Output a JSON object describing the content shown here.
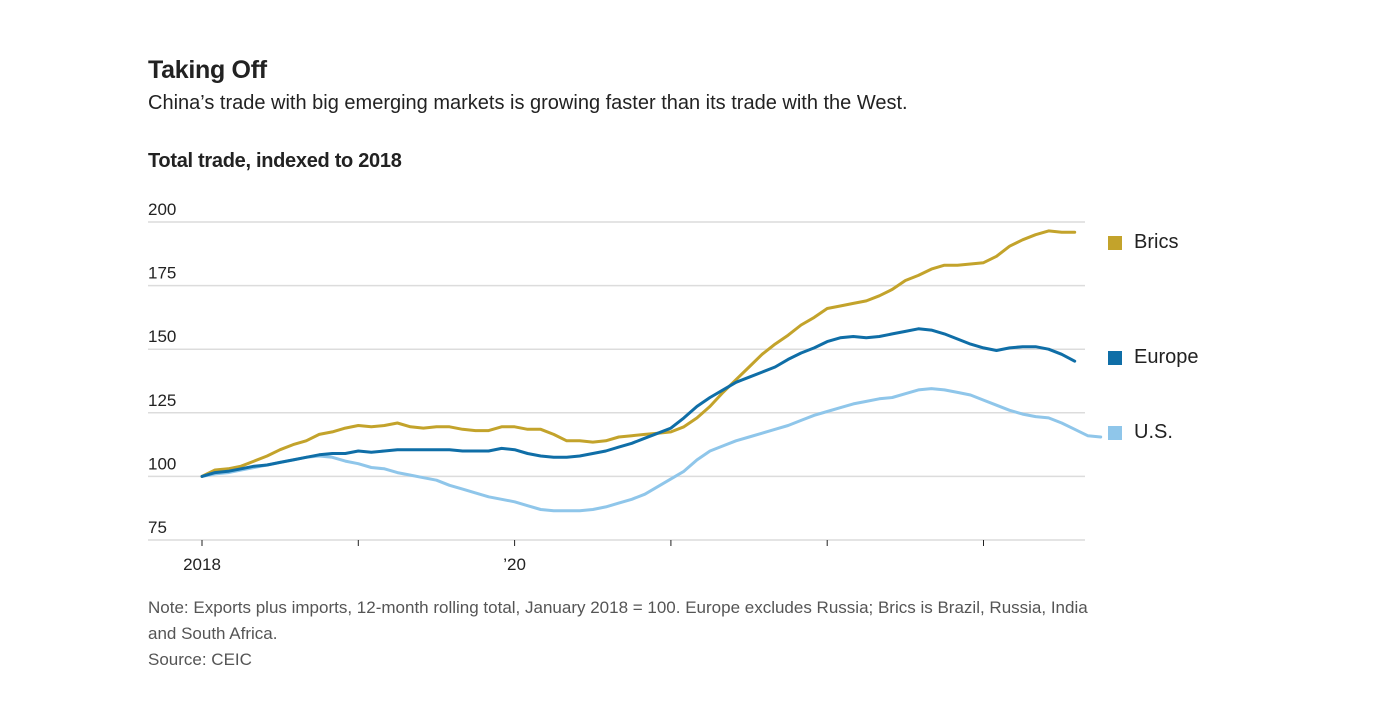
{
  "header": {
    "title": "Taking Off",
    "subtitle": "China’s trade with big emerging markets is growing faster than its trade with the West.",
    "unit_label": "Total trade, indexed to 2018"
  },
  "footer": {
    "note": "Note: Exports plus imports, 12-month rolling total, January 2018 = 100. Europe excludes Russia; Brics is Brazil, Russia, India",
    "note_cont": "and South Africa.",
    "source": "Source: CEIC"
  },
  "chart_data": {
    "type": "line",
    "title": "Taking Off",
    "subtitle": "China’s trade with big emerging markets is growing faster than its trade with the West.",
    "ylabel": "Total trade, indexed to 2018",
    "xlabel": "",
    "ylim": [
      75,
      200
    ],
    "yticks": [
      75,
      100,
      125,
      150,
      175,
      200
    ],
    "ytick_labels": [
      "75",
      "100",
      "125",
      "150",
      "175",
      "200"
    ],
    "xlim_years": [
      2018.0,
      2023.75
    ],
    "xticks": [
      2018,
      2019,
      2020,
      2021,
      2022,
      2023
    ],
    "xtick_labels": [
      "2018",
      "",
      "’20",
      "",
      "",
      ""
    ],
    "x_start": "2018-01",
    "x_step": "month",
    "grid": true,
    "legend_position": "right",
    "series": [
      {
        "name": "Brics",
        "color": "#c3a32b",
        "values": [
          100,
          102.5,
          103,
          104,
          106,
          108,
          110.5,
          112.5,
          114,
          116.5,
          117.5,
          119,
          120,
          119.5,
          120,
          121,
          119.5,
          119,
          119.5,
          119.5,
          118.5,
          118,
          118,
          119.5,
          119.5,
          118.5,
          118.5,
          116.5,
          114,
          114,
          113.5,
          114,
          115.5,
          116,
          116.5,
          117,
          117.5,
          119.5,
          123,
          127.5,
          133,
          138,
          143,
          148,
          152,
          155.5,
          159.5,
          162.5,
          166,
          167,
          168,
          169,
          171,
          173.5,
          177,
          179,
          181.5,
          183,
          183,
          183.5,
          184,
          186.5,
          190.5,
          193,
          195,
          196.5,
          196,
          196
        ]
      },
      {
        "name": "Europe",
        "color": "#0f6ea7",
        "values": [
          100,
          101.5,
          102,
          103,
          104,
          104.5,
          105.5,
          106.5,
          107.5,
          108.5,
          109,
          109,
          110,
          109.5,
          110,
          110.5,
          110.5,
          110.5,
          110.5,
          110.5,
          110,
          110,
          110,
          111,
          110.5,
          109,
          108,
          107.5,
          107.5,
          108,
          109,
          110,
          111.5,
          113,
          115,
          117,
          119,
          123,
          127.5,
          131,
          134,
          137,
          139,
          141,
          143,
          146,
          148.5,
          150.5,
          153,
          154.5,
          155,
          154.5,
          155,
          156,
          157,
          158,
          157.5,
          156,
          154,
          152,
          150.5,
          149.5,
          150.5,
          151,
          151,
          150,
          148,
          145.3
        ]
      },
      {
        "name": "U.S.",
        "color": "#8fc6ea",
        "values": [
          100,
          101,
          101.5,
          102.5,
          103.5,
          104.5,
          105.5,
          106.5,
          107.5,
          108,
          107.5,
          106,
          105,
          103.5,
          103,
          101.5,
          100.5,
          99.5,
          98.5,
          96.5,
          95,
          93.5,
          92,
          91,
          90,
          88.5,
          87,
          86.5,
          86.5,
          86.5,
          87,
          88,
          89.5,
          91,
          93,
          96,
          99,
          102,
          106.5,
          110,
          112,
          114,
          115.5,
          117,
          118.5,
          120,
          122,
          124,
          125.5,
          127,
          128.5,
          129.5,
          130.5,
          131,
          132.5,
          134,
          134.5,
          134,
          133,
          132,
          130,
          128,
          126,
          124.5,
          123.5,
          123,
          121,
          118.5,
          116,
          115.5
        ]
      }
    ]
  },
  "legend": [
    {
      "label": "Brics",
      "color": "#c3a32b"
    },
    {
      "label": "Europe",
      "color": "#0f6ea7"
    },
    {
      "label": "U.S.",
      "color": "#8fc6ea"
    }
  ]
}
